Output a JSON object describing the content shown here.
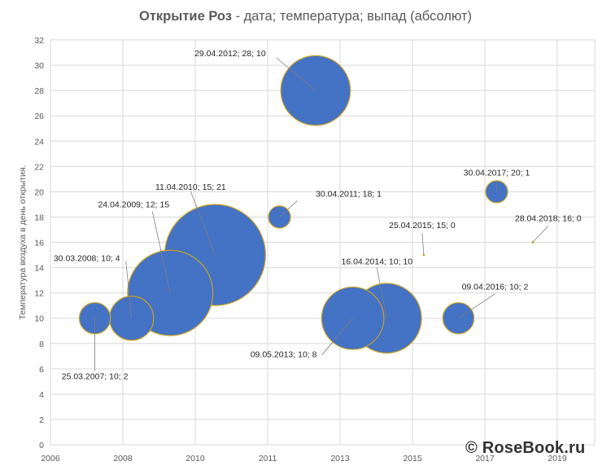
{
  "chart_data": {
    "type": "bubble",
    "title_bold": "Открытие Роз",
    "title_rest": " - дата; температура; выпад (абсолют)",
    "xlabel": "",
    "ylabel": "Температура воздуха в день открытия.",
    "xlim": [
      2006,
      2020
    ],
    "ylim": [
      0,
      32
    ],
    "x_ticks": [
      2006,
      2008,
      2010,
      2011,
      2013,
      2015,
      2017,
      2019
    ],
    "y_ticks": [
      0,
      2,
      4,
      6,
      8,
      10,
      12,
      14,
      16,
      18,
      20,
      22,
      24,
      26,
      28,
      30,
      32
    ],
    "grid": true,
    "legend": false,
    "colors": {
      "bubble_fill": "#4472C4",
      "bubble_stroke": "#C9A227",
      "grid": "#D9D9D9",
      "leader": "#7F7F7F"
    },
    "points": [
      {
        "label": "25.03.2007; 10; 2",
        "date": "25.03.2007",
        "temperature": 10,
        "size": 2
      },
      {
        "label": "30.03.2008; 10; 4",
        "date": "30.03.2008",
        "temperature": 10,
        "size": 4
      },
      {
        "label": "24.04.2009; 12; 15",
        "date": "24.04.2009",
        "temperature": 12,
        "size": 15
      },
      {
        "label": "11.04.2010; 15; 21",
        "date": "11.04.2010",
        "temperature": 15,
        "size": 21
      },
      {
        "label": "30.04.2011; 18; 1",
        "date": "30.04.2011",
        "temperature": 18,
        "size": 1
      },
      {
        "label": "29.04.2012; 28; 10",
        "date": "29.04.2012",
        "temperature": 28,
        "size": 10
      },
      {
        "label": "09.05.2013; 10; 8",
        "date": "09.05.2013",
        "temperature": 10,
        "size": 8
      },
      {
        "label": "16.04.2014; 10; 10",
        "date": "16.04.2014",
        "temperature": 10,
        "size": 10
      },
      {
        "label": "25.04.2015; 15; 0",
        "date": "25.04.2015",
        "temperature": 15,
        "size": 0
      },
      {
        "label": "09.04.2016; 10; 2",
        "date": "09.04.2016",
        "temperature": 10,
        "size": 2
      },
      {
        "label": "30.04.2017; 20; 1",
        "date": "30.04.2017",
        "temperature": 20,
        "size": 1
      },
      {
        "label": "28.04.2018; 16; 0",
        "date": "28.04.2018",
        "temperature": 16,
        "size": 0
      }
    ]
  },
  "watermark": "© RoseBook.ru"
}
